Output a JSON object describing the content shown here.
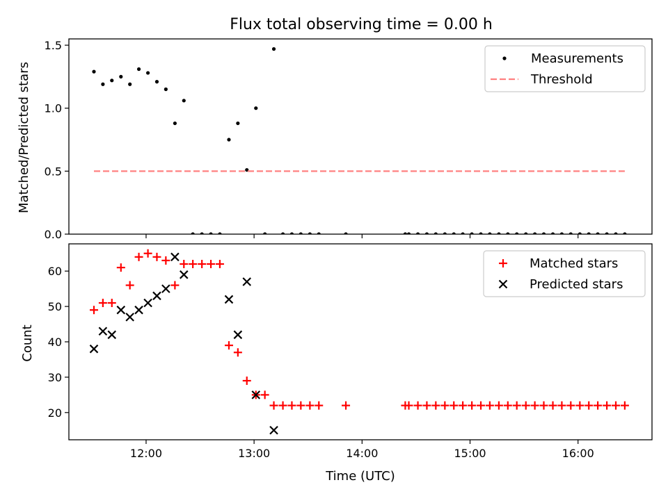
{
  "chart_data": {
    "title": "Flux total observing time = 0.00 h",
    "xlabel": "Time (UTC)",
    "xlim": [
      11.285,
      16.685
    ],
    "x_ticks": [
      {
        "value": 12,
        "label": "12:00"
      },
      {
        "value": 13,
        "label": "13:00"
      },
      {
        "value": 14,
        "label": "14:00"
      },
      {
        "value": 15,
        "label": "15:00"
      },
      {
        "value": 16,
        "label": "16:00"
      }
    ],
    "panels": [
      {
        "id": "ratio",
        "type": "scatter",
        "ylabel": "Matched/Predicted stars",
        "ylim": [
          0,
          1.55
        ],
        "y_ticks": [
          {
            "value": 0,
            "label": "0.0"
          },
          {
            "value": 0.5,
            "label": "0.5"
          },
          {
            "value": 1.0,
            "label": "1.0"
          },
          {
            "value": 1.5,
            "label": "1.5"
          }
        ],
        "legend": {
          "position": "top-right",
          "entries": [
            {
              "label": "Measurements",
              "marker": "dot",
              "color": "#000000"
            },
            {
              "label": "Threshold",
              "marker": "dashed-line",
              "color": "#ff8080"
            }
          ]
        },
        "series": [
          {
            "name": "Measurements",
            "marker": "dot",
            "color": "#000000",
            "points": [
              [
                11.517,
                1.29
              ],
              [
                11.6,
                1.19
              ],
              [
                11.683,
                1.22
              ],
              [
                11.767,
                1.25
              ],
              [
                11.85,
                1.19
              ],
              [
                11.933,
                1.31
              ],
              [
                12.017,
                1.28
              ],
              [
                12.1,
                1.21
              ],
              [
                12.183,
                1.15
              ],
              [
                12.267,
                0.88
              ],
              [
                12.35,
                1.06
              ],
              [
                12.433,
                0
              ],
              [
                12.517,
                0
              ],
              [
                12.6,
                0
              ],
              [
                12.683,
                0
              ],
              [
                12.767,
                0.75
              ],
              [
                12.85,
                0.88
              ],
              [
                12.933,
                0.51
              ],
              [
                13.017,
                1.0
              ],
              [
                13.1,
                0
              ],
              [
                13.183,
                1.47
              ],
              [
                13.267,
                0
              ],
              [
                13.35,
                0
              ],
              [
                13.433,
                0
              ],
              [
                13.517,
                0
              ],
              [
                13.6,
                0
              ],
              [
                13.85,
                0
              ],
              [
                14.4,
                0
              ],
              [
                14.433,
                0
              ],
              [
                14.517,
                0
              ],
              [
                14.6,
                0
              ],
              [
                14.683,
                0
              ],
              [
                14.767,
                0
              ],
              [
                14.85,
                0
              ],
              [
                14.933,
                0
              ],
              [
                15.017,
                0
              ],
              [
                15.1,
                0
              ],
              [
                15.183,
                0
              ],
              [
                15.267,
                0
              ],
              [
                15.35,
                0
              ],
              [
                15.433,
                0
              ],
              [
                15.517,
                0
              ],
              [
                15.6,
                0
              ],
              [
                15.683,
                0
              ],
              [
                15.767,
                0
              ],
              [
                15.85,
                0
              ],
              [
                15.933,
                0
              ],
              [
                16.017,
                0
              ],
              [
                16.1,
                0
              ],
              [
                16.183,
                0
              ],
              [
                16.267,
                0
              ],
              [
                16.35,
                0
              ],
              [
                16.433,
                0
              ]
            ]
          },
          {
            "name": "Threshold",
            "type": "line",
            "style": "dashed",
            "color": "#ff8080",
            "points": [
              [
                11.517,
                0.5
              ],
              [
                16.433,
                0.5
              ]
            ]
          }
        ]
      },
      {
        "id": "counts",
        "type": "scatter",
        "ylabel": "Count",
        "ylim": [
          12.3,
          67.7
        ],
        "y_ticks": [
          {
            "value": 20,
            "label": "20"
          },
          {
            "value": 30,
            "label": "30"
          },
          {
            "value": 40,
            "label": "40"
          },
          {
            "value": 50,
            "label": "50"
          },
          {
            "value": 60,
            "label": "60"
          }
        ],
        "legend": {
          "position": "top-right",
          "entries": [
            {
              "label": "Matched stars",
              "marker": "plus",
              "color": "#ff0000"
            },
            {
              "label": "Predicted stars",
              "marker": "x",
              "color": "#000000"
            }
          ]
        },
        "series": [
          {
            "name": "Matched stars",
            "marker": "plus",
            "color": "#ff0000",
            "points": [
              [
                11.517,
                49
              ],
              [
                11.6,
                51
              ],
              [
                11.683,
                51
              ],
              [
                11.767,
                61
              ],
              [
                11.85,
                56
              ],
              [
                11.933,
                64
              ],
              [
                12.017,
                65
              ],
              [
                12.1,
                64
              ],
              [
                12.183,
                63
              ],
              [
                12.267,
                56
              ],
              [
                12.35,
                62
              ],
              [
                12.433,
                62
              ],
              [
                12.517,
                62
              ],
              [
                12.6,
                62
              ],
              [
                12.683,
                62
              ],
              [
                12.767,
                39
              ],
              [
                12.85,
                37
              ],
              [
                12.933,
                29
              ],
              [
                13.017,
                25
              ],
              [
                13.1,
                25
              ],
              [
                13.183,
                22
              ],
              [
                13.267,
                22
              ],
              [
                13.35,
                22
              ],
              [
                13.433,
                22
              ],
              [
                13.517,
                22
              ],
              [
                13.6,
                22
              ],
              [
                13.85,
                22
              ],
              [
                14.4,
                22
              ],
              [
                14.433,
                22
              ],
              [
                14.517,
                22
              ],
              [
                14.6,
                22
              ],
              [
                14.683,
                22
              ],
              [
                14.767,
                22
              ],
              [
                14.85,
                22
              ],
              [
                14.933,
                22
              ],
              [
                15.017,
                22
              ],
              [
                15.1,
                22
              ],
              [
                15.183,
                22
              ],
              [
                15.267,
                22
              ],
              [
                15.35,
                22
              ],
              [
                15.433,
                22
              ],
              [
                15.517,
                22
              ],
              [
                15.6,
                22
              ],
              [
                15.683,
                22
              ],
              [
                15.767,
                22
              ],
              [
                15.85,
                22
              ],
              [
                15.933,
                22
              ],
              [
                16.017,
                22
              ],
              [
                16.1,
                22
              ],
              [
                16.183,
                22
              ],
              [
                16.267,
                22
              ],
              [
                16.35,
                22
              ],
              [
                16.433,
                22
              ]
            ]
          },
          {
            "name": "Predicted stars",
            "marker": "x",
            "color": "#000000",
            "points": [
              [
                11.517,
                38
              ],
              [
                11.6,
                43
              ],
              [
                11.683,
                42
              ],
              [
                11.767,
                49
              ],
              [
                11.85,
                47
              ],
              [
                11.933,
                49
              ],
              [
                12.017,
                51
              ],
              [
                12.1,
                53
              ],
              [
                12.183,
                55
              ],
              [
                12.267,
                64
              ],
              [
                12.35,
                59
              ],
              [
                12.767,
                52
              ],
              [
                12.85,
                42
              ],
              [
                12.933,
                57
              ],
              [
                13.017,
                25
              ],
              [
                13.183,
                15
              ]
            ]
          }
        ]
      }
    ]
  }
}
